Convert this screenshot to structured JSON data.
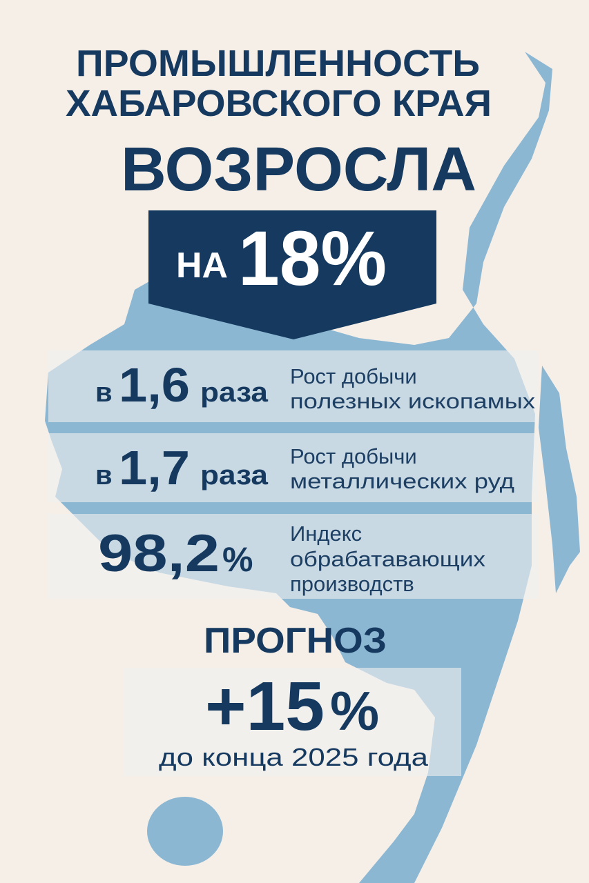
{
  "header": {
    "title_lines": [
      "ПРОМЫШЛЕННОСТЬ",
      "ХАБАРОВСКОГО КРАЯ"
    ],
    "headline": "ВОЗРОСЛА"
  },
  "banner": {
    "prefix": "НА",
    "value": "18%"
  },
  "stats": [
    {
      "prefix": "в",
      "value": "1,6",
      "suffix": "раза",
      "description": [
        "Рост добычи",
        "полезных ископамых"
      ]
    },
    {
      "prefix": "в",
      "value": "1,7",
      "suffix": "раза",
      "description": [
        "Рост добычи",
        "металлических руд"
      ]
    },
    {
      "value": "98,2",
      "suffix": "%",
      "description": [
        "Индекс",
        "обрабатавающих",
        "производств"
      ]
    }
  ],
  "forecast": {
    "title": "ПРОГНОЗ",
    "value": "+15",
    "unit": "%",
    "note": "до конца 2025 года"
  }
}
